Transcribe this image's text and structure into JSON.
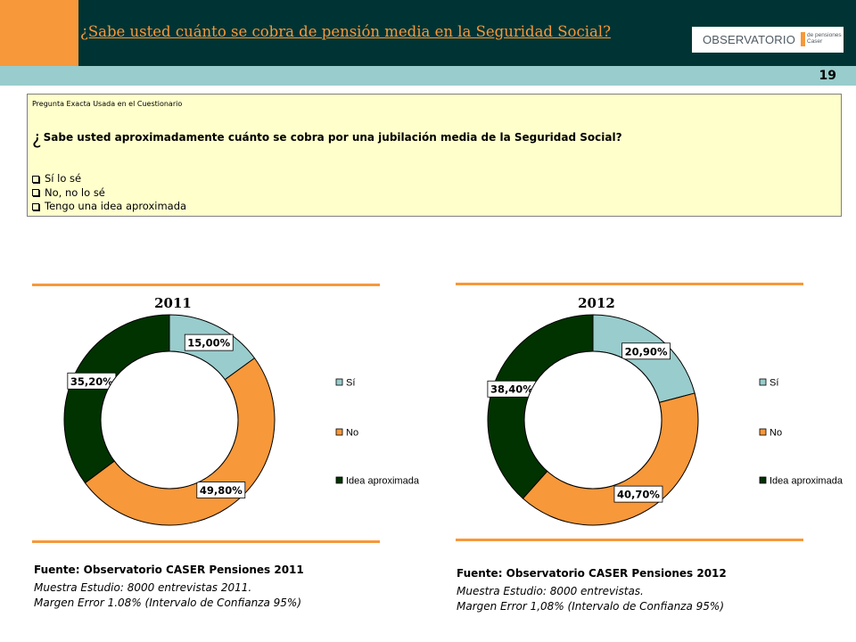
{
  "header": {
    "title": "¿Sabe usted cuánto se cobra de pensión media en la Seguridad Social?",
    "logo_main": "OBSERVATORIO",
    "logo_sub_1": "de pensiones",
    "logo_sub_2": "Caser",
    "page_number": "19"
  },
  "question": {
    "label": "Pregunta Exacta Usada en el Cuestionario",
    "inverted_mark": "¿",
    "text": "Sabe usted aproximadamente cuánto se cobra por una jubilación media de la Seguridad Social?",
    "options": [
      "Sí lo sé",
      "No, no lo sé",
      "Tengo una idea aproximada"
    ]
  },
  "colors": {
    "accent_orange": "#F7983A",
    "header_dark": "#003434",
    "band_teal": "#99CCCC",
    "question_bg": "#FFFFCC",
    "si": "#99CCCC",
    "no": "#F7983A",
    "idea": "#003300"
  },
  "chart_data": [
    {
      "type": "pie",
      "variant": "donut",
      "title": "2011",
      "categories": [
        "Sí",
        "No",
        "Idea aproximada"
      ],
      "values": [
        15.0,
        49.8,
        35.2
      ],
      "value_labels": [
        "15,00%",
        "49,80%",
        "35,20%"
      ],
      "colors": [
        "#99CCCC",
        "#F7983A",
        "#003300"
      ],
      "legend": "right"
    },
    {
      "type": "pie",
      "variant": "donut",
      "title": "2012",
      "categories": [
        "Sí",
        "No",
        "Idea aproximada"
      ],
      "values": [
        20.9,
        40.7,
        38.4
      ],
      "value_labels": [
        "20,90%",
        "40,70%",
        "38,40%"
      ],
      "colors": [
        "#99CCCC",
        "#F7983A",
        "#003300"
      ],
      "legend": "right"
    }
  ],
  "sources": [
    {
      "title": "Fuente: Observatorio CASER Pensiones 2011",
      "line1": "Muestra Estudio: 8000 entrevistas 2011.",
      "line2": "Margen Error 1.08% (Intervalo de Confianza 95%)"
    },
    {
      "title": "Fuente: Observatorio CASER Pensiones 2012",
      "line1": "Muestra Estudio: 8000 entrevistas.",
      "line2": "Margen Error 1,08% (Intervalo de Confianza 95%)"
    }
  ]
}
